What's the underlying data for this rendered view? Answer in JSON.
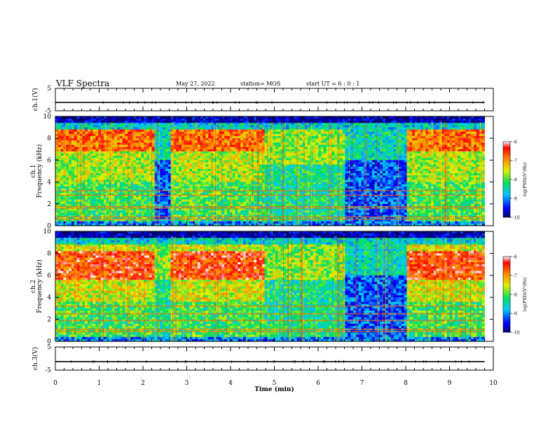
{
  "header": {
    "title": "VLF Spectra",
    "date": "May 27, 2022",
    "station": "station= MOS",
    "start": "start  UT =  6 : 0  : 1"
  },
  "chart_data": [
    {
      "type": "line",
      "name": "ch1-waveform",
      "ylabel": "ch.1(V)",
      "ylim": [
        -5,
        5
      ],
      "yticks": [
        "5",
        "-5"
      ],
      "xlim": [
        0,
        10
      ],
      "x_extent": [
        0,
        9.8
      ],
      "level": -1.3,
      "color": "#000000"
    },
    {
      "type": "heatmap",
      "name": "ch1-spectrogram",
      "ylabel_line1": "ch.1",
      "ylabel_line2": "Frequency (kHz)",
      "ylim": [
        0,
        10
      ],
      "yticks": [
        "0",
        "2",
        "4",
        "6",
        "8",
        "10"
      ],
      "xlim": [
        0,
        10
      ],
      "x_extent": [
        0,
        9.8
      ],
      "colorbar": {
        "label": "log(PSD)(V²/Hz)",
        "range": [
          -10,
          -6
        ],
        "ticks": [
          "-6",
          "-7",
          "-8",
          "-9",
          "-10"
        ]
      },
      "regions": [
        {
          "t": [
            0.0,
            2.25
          ],
          "profile": "active"
        },
        {
          "t": [
            2.25,
            2.65
          ],
          "profile": "quiet"
        },
        {
          "t": [
            2.65,
            4.8
          ],
          "profile": "active"
        },
        {
          "t": [
            4.8,
            6.6
          ],
          "profile": "mixed"
        },
        {
          "t": [
            6.6,
            8.05
          ],
          "profile": "quiet"
        },
        {
          "t": [
            8.05,
            9.8
          ],
          "profile": "active"
        }
      ],
      "lines_khz": [
        0.6,
        0.8,
        1.6,
        1.75,
        2.8,
        3.2
      ]
    },
    {
      "type": "heatmap",
      "name": "ch2-spectrogram",
      "ylabel_line1": "ch.2",
      "ylabel_line2": "Frequency (kHz)",
      "ylim": [
        0,
        10
      ],
      "yticks": [
        "0",
        "2",
        "4",
        "6",
        "8",
        "10"
      ],
      "xlim": [
        0,
        10
      ],
      "x_extent": [
        0,
        9.8
      ],
      "colorbar": {
        "label": "log(PSD)(V²/Hz)",
        "range": [
          -10,
          -6
        ],
        "ticks": [
          "-6",
          "-7",
          "-8",
          "-9",
          "-10"
        ]
      },
      "regions": [
        {
          "t": [
            0.0,
            2.25
          ],
          "profile": "active"
        },
        {
          "t": [
            2.25,
            2.65
          ],
          "profile": "mixed"
        },
        {
          "t": [
            2.65,
            4.8
          ],
          "profile": "active"
        },
        {
          "t": [
            4.8,
            6.6
          ],
          "profile": "mixed"
        },
        {
          "t": [
            6.6,
            8.05
          ],
          "profile": "quiet"
        },
        {
          "t": [
            8.05,
            9.8
          ],
          "profile": "active"
        }
      ],
      "lines_khz": [
        0.9,
        1.1,
        1.9,
        2.5,
        3.2
      ]
    },
    {
      "type": "line",
      "name": "ch3-waveform",
      "ylabel": "ch.3(V)",
      "ylim": [
        -5,
        5
      ],
      "yticks": [
        "5",
        "-5"
      ],
      "xlim": [
        0,
        10
      ],
      "x_extent": [
        0,
        9.8
      ],
      "level": -1.3,
      "color": "#000000"
    }
  ],
  "x_axis": {
    "xlabel": "Time (min)",
    "ticks": [
      "0",
      "1",
      "2",
      "3",
      "4",
      "5",
      "6",
      "7",
      "8",
      "9",
      "10"
    ]
  }
}
